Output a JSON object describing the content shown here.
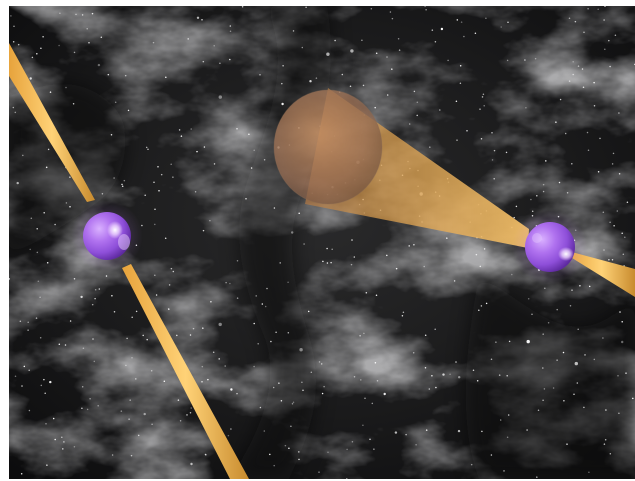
{
  "scene": {
    "description_name": "pulsar-binary-illustration",
    "palette": {
      "space_dark": "#0b0b0c",
      "nebula_gray": "#5a5a5a",
      "star_white": "#ffffff",
      "beam_gold": "#f0b64a",
      "beam_shadow": "#b6822b",
      "pulsar_purple": "#a365e6",
      "pulsar_highlight": "#f2dcff"
    },
    "objects": [
      {
        "kind": "pulsar",
        "name": "left-pulsar"
      },
      {
        "kind": "pulsar",
        "name": "right-pulsar"
      }
    ]
  }
}
